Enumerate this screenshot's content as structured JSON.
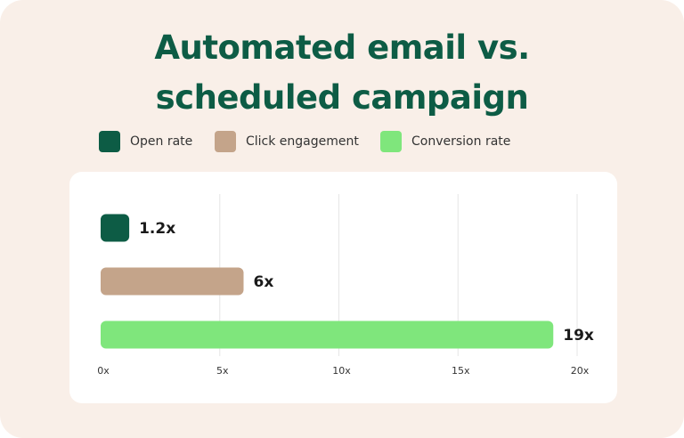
{
  "chart_data": {
    "type": "bar",
    "orientation": "horizontal",
    "title": "Automated email vs. scheduled campaign",
    "categories": [
      "Open rate",
      "Click engagement",
      "Conversion rate"
    ],
    "values": [
      1.2,
      6,
      19
    ],
    "value_labels": [
      "1.2x",
      "6x",
      "19x"
    ],
    "colors": [
      "#0d5c45",
      "#c4a48a",
      "#7fe67c"
    ],
    "xlim": [
      0,
      20
    ],
    "xticks": [
      {
        "value": 0,
        "label": "0x"
      },
      {
        "value": 5,
        "label": "5x"
      },
      {
        "value": 10,
        "label": "10x"
      },
      {
        "value": 15,
        "label": "15x"
      },
      {
        "value": 20,
        "label": "20x"
      }
    ],
    "grid": true
  }
}
